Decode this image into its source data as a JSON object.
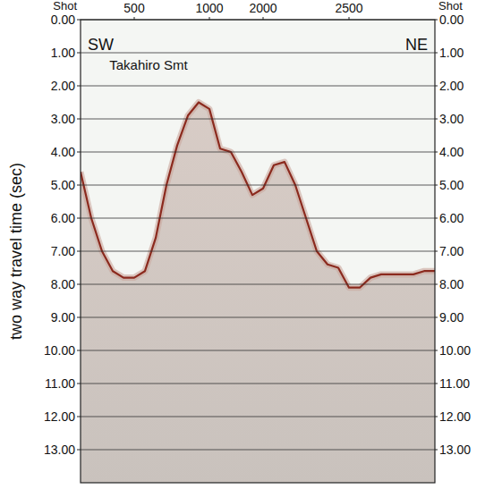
{
  "chart_data": {
    "type": "area",
    "x_label": "Shot",
    "y_label": "two way travel time (sec)",
    "annotations": [
      "SW",
      "NE",
      "Takahiro Smt"
    ],
    "categories": [
      null,
      null,
      null,
      null,
      null,
      "500",
      null,
      null,
      null,
      null,
      null,
      null,
      "1000",
      null,
      null,
      null,
      null,
      "2000",
      null,
      null,
      null,
      null,
      null,
      null,
      null,
      "2500",
      null,
      null,
      null,
      null,
      null,
      null,
      null,
      null
    ],
    "series": [
      {
        "color": "#8b2a1e",
        "values": [
          4.6,
          6.0,
          7.0,
          7.6,
          7.8,
          7.8,
          7.6,
          6.6,
          5.0,
          3.8,
          2.9,
          2.5,
          2.7,
          3.9,
          4.0,
          4.6,
          5.3,
          5.1,
          4.4,
          4.3,
          5.0,
          6.0,
          7.0,
          7.4,
          7.5,
          8.1,
          8.1,
          7.8,
          7.7,
          7.7,
          7.7,
          7.7,
          7.6,
          7.6
        ]
      }
    ],
    "ylim": [
      0,
      14
    ],
    "yticks": [
      {
        "value": 0,
        "label": "0.00"
      },
      {
        "value": 1,
        "label": "1.00"
      },
      {
        "value": 2,
        "label": "2.00"
      },
      {
        "value": 3,
        "label": "3.00"
      },
      {
        "value": 4,
        "label": "4.00"
      },
      {
        "value": 5,
        "label": "5.00"
      },
      {
        "value": 6,
        "label": "6.00"
      },
      {
        "value": 7,
        "label": "7.00"
      },
      {
        "value": 8,
        "label": "8.00"
      },
      {
        "value": 9,
        "label": "9.00"
      },
      {
        "value": 10,
        "label": "10.00"
      },
      {
        "value": 11,
        "label": "11.00"
      },
      {
        "value": 12,
        "label": "12.00"
      },
      {
        "value": 13,
        "label": "13.00"
      }
    ],
    "grid": true
  }
}
